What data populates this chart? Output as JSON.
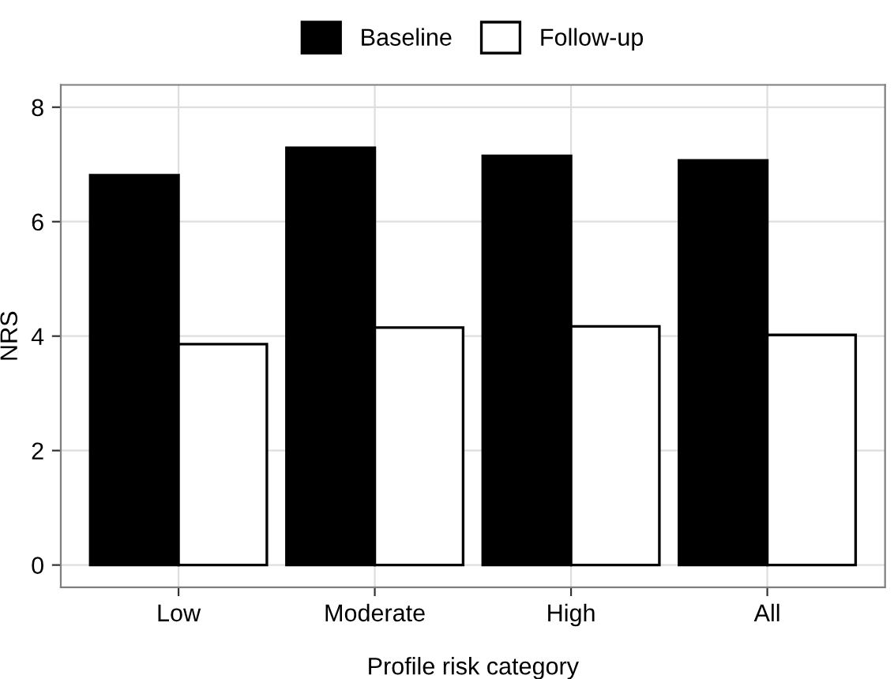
{
  "chart_data": {
    "type": "bar",
    "xlabel": "Profile risk category",
    "ylabel": "NRS",
    "categories": [
      "Low",
      "Moderate",
      "High",
      "All"
    ],
    "series": [
      {
        "name": "Baseline",
        "color": "#000000",
        "values": [
          6.81,
          7.29,
          7.15,
          7.07
        ]
      },
      {
        "name": "Follow-up",
        "color": "#ffffff",
        "values": [
          3.86,
          4.15,
          4.17,
          4.02
        ]
      }
    ],
    "ylim": [
      -0.39,
      8.39
    ],
    "yticks": [
      0,
      2,
      4,
      6,
      8
    ],
    "grid": true,
    "legend": "top"
  }
}
